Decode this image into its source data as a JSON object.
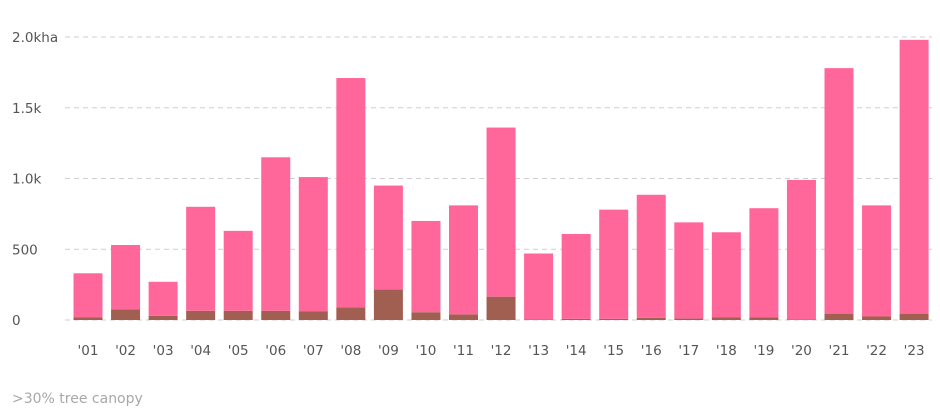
{
  "chart_data": {
    "type": "bar",
    "stacked": true,
    "categories": [
      "'01",
      "'02",
      "'03",
      "'04",
      "'05",
      "'06",
      "'07",
      "'08",
      "'09",
      "'10",
      "'11",
      "'12",
      "'13",
      "'14",
      "'15",
      "'16",
      "'17",
      "'18",
      "'19",
      "'20",
      "'21",
      "'22",
      "'23"
    ],
    "series": [
      {
        "color": "#a15f52",
        "values": [
          20,
          75,
          30,
          65,
          65,
          65,
          60,
          90,
          215,
          55,
          40,
          165,
          5,
          8,
          8,
          15,
          10,
          20,
          18,
          5,
          45,
          25,
          45
        ]
      },
      {
        "color": "#ff6699",
        "values": [
          310,
          455,
          240,
          735,
          565,
          1085,
          950,
          1620,
          735,
          645,
          770,
          1195,
          465,
          600,
          772,
          870,
          680,
          600,
          772,
          985,
          1735,
          785,
          1935
        ]
      }
    ],
    "yticks": [
      {
        "value": 0,
        "label": "0"
      },
      {
        "value": 500,
        "label": "500"
      },
      {
        "value": 1000,
        "label": "1.0k"
      },
      {
        "value": 1500,
        "label": "1.5k"
      },
      {
        "value": 2000,
        "label": "2.0kha"
      }
    ],
    "ylim": [
      0,
      2000
    ],
    "grid": true,
    "title": "",
    "xlabel": "",
    "ylabel": ""
  },
  "footnote": ">30% tree canopy"
}
